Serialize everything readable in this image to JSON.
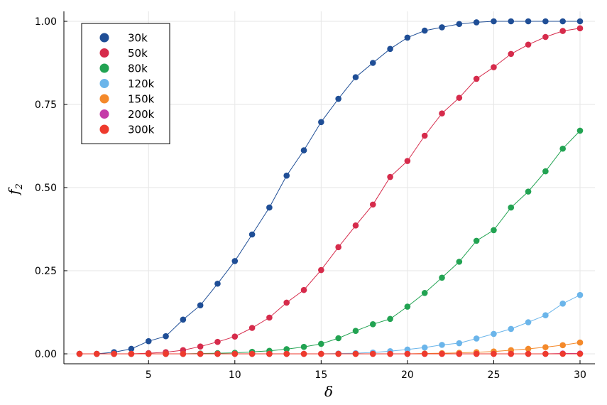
{
  "chart_data": {
    "type": "line",
    "xlabel": "δ",
    "ylabel": "f",
    "ylabel_subscript": "2",
    "xlim": [
      1,
      30
    ],
    "ylim": [
      0,
      1
    ],
    "x_ticks": [
      5,
      10,
      15,
      20,
      25,
      30
    ],
    "x_tick_labels": [
      "5",
      "10",
      "15",
      "20",
      "25",
      "30"
    ],
    "y_ticks": [
      0,
      0.25,
      0.5,
      0.75,
      1.0
    ],
    "y_tick_labels": [
      "0.00",
      "0.25",
      "0.50",
      "0.75",
      "1.00"
    ],
    "grid": true,
    "legend_position": "top-left",
    "x": [
      1,
      2,
      3,
      4,
      5,
      6,
      7,
      8,
      9,
      10,
      11,
      12,
      13,
      14,
      15,
      16,
      17,
      18,
      19,
      20,
      21,
      22,
      23,
      24,
      25,
      26,
      27,
      28,
      29,
      30
    ],
    "series": [
      {
        "name": "30k",
        "color": "#1f4e96",
        "values": [
          0,
          0,
          0.005,
          0.015,
          0.038,
          0.053,
          0.103,
          0.146,
          0.211,
          0.279,
          0.359,
          0.44,
          0.536,
          0.612,
          0.697,
          0.767,
          0.832,
          0.875,
          0.917,
          0.951,
          0.972,
          0.982,
          0.992,
          0.997,
          1.0,
          1.0,
          1.0,
          1.0,
          1.0,
          1.0
        ]
      },
      {
        "name": "50k",
        "color": "#d62b4b",
        "values": [
          0,
          0,
          0,
          0,
          0.002,
          0.005,
          0.011,
          0.022,
          0.036,
          0.052,
          0.078,
          0.109,
          0.154,
          0.192,
          0.252,
          0.321,
          0.386,
          0.449,
          0.532,
          0.58,
          0.656,
          0.723,
          0.77,
          0.827,
          0.862,
          0.902,
          0.93,
          0.953,
          0.971,
          0.979
        ]
      },
      {
        "name": "80k",
        "color": "#22a352",
        "values": [
          0,
          0,
          0,
          0,
          0,
          0,
          0,
          0.001,
          0.002,
          0.003,
          0.006,
          0.009,
          0.014,
          0.021,
          0.03,
          0.047,
          0.069,
          0.089,
          0.105,
          0.142,
          0.183,
          0.229,
          0.277,
          0.34,
          0.372,
          0.44,
          0.488,
          0.549,
          0.617,
          0.671
        ]
      },
      {
        "name": "120k",
        "color": "#6bb5ea",
        "values": [
          0,
          0,
          0,
          0,
          0,
          0,
          0,
          0,
          0,
          0,
          0,
          0,
          0,
          0,
          0,
          0.001,
          0.002,
          0.004,
          0.008,
          0.013,
          0.019,
          0.027,
          0.032,
          0.046,
          0.06,
          0.075,
          0.095,
          0.116,
          0.151,
          0.177
        ]
      },
      {
        "name": "150k",
        "color": "#f4892a",
        "values": [
          0,
          0,
          0,
          0,
          0,
          0,
          0,
          0,
          0,
          0,
          0,
          0,
          0,
          0,
          0,
          0,
          0,
          0,
          0,
          0,
          0.001,
          0.002,
          0.003,
          0.005,
          0.007,
          0.011,
          0.015,
          0.02,
          0.026,
          0.034
        ]
      },
      {
        "name": "200k",
        "color": "#c43ba8",
        "values": [
          0,
          0,
          0,
          0,
          0,
          0,
          0,
          0,
          0,
          0,
          0,
          0,
          0,
          0,
          0,
          0,
          0,
          0,
          0,
          0,
          0,
          0,
          0,
          0,
          0,
          0,
          0,
          0,
          0.001,
          0.001
        ]
      },
      {
        "name": "300k",
        "color": "#ee3a2d",
        "values": [
          0,
          0,
          0,
          0,
          0,
          0,
          0,
          0,
          0,
          0,
          0,
          0,
          0,
          0,
          0,
          0,
          0,
          0,
          0,
          0,
          0,
          0,
          0,
          0,
          0,
          0,
          0,
          0,
          0,
          0
        ]
      }
    ]
  }
}
